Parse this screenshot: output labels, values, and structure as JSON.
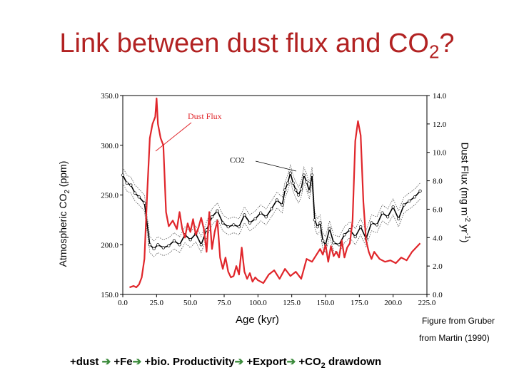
{
  "title": {
    "main": "Link between dust flux and CO",
    "sub": "2",
    "suffix": "?"
  },
  "labels": {
    "ylabel_left_a": "Atmospheric CO",
    "ylabel_left_sub": "2",
    "ylabel_left_b": " (ppm)",
    "ylabel_right_a": "Dust Flux (mg m",
    "ylabel_right_sup1": "-2",
    "ylabel_right_b": " yr",
    "ylabel_right_sup2": "-1",
    "ylabel_right_c": ")",
    "xlabel": "Age (kyr)",
    "credit1": "Figure from Gruber",
    "credit2": "from Martin (1990)"
  },
  "bottom_line": {
    "t1": "+dust ",
    "arrow": "➔",
    "t2": " +Fe",
    "t3": " +bio. Productivity",
    "t4": " +Export",
    "t5": " +CO",
    "t5_sub": "2",
    "t6": " drawdown"
  },
  "colors": {
    "title": "#b22222",
    "dust": "#e0262b",
    "co2": "#000000",
    "arrow": "#3a8a3a",
    "annot": "#e0262b"
  },
  "chart_data": {
    "type": "line",
    "xlim": [
      0,
      225
    ],
    "xticks": [
      "0.0",
      "25.0",
      "50.0",
      "75.0",
      "100.0",
      "125.0",
      "150.0",
      "175.0",
      "200.0",
      "225.0"
    ],
    "ylim_left": [
      150,
      350
    ],
    "yticks_left": [
      "150.0",
      "200.0",
      "250.0",
      "300.0",
      "350.0"
    ],
    "ylim_right": [
      0,
      14
    ],
    "yticks_right": [
      "0.0",
      "2.0",
      "4.0",
      "6.0",
      "8.0",
      "10.0",
      "12.0",
      "14.0"
    ],
    "annotations": [
      "Dust Flux",
      "CO2"
    ],
    "series": [
      {
        "name": "CO2",
        "axis": "left",
        "x": [
          0,
          3,
          6,
          9,
          12,
          16,
          20,
          23,
          26,
          30,
          34,
          38,
          42,
          46,
          50,
          54,
          58,
          62,
          66,
          70,
          74,
          78,
          82,
          86,
          90,
          94,
          98,
          102,
          106,
          110,
          114,
          118,
          120,
          122,
          124,
          126,
          128,
          130,
          132,
          134,
          136,
          138,
          140,
          142,
          144,
          146,
          148,
          150,
          153,
          156,
          160,
          164,
          168,
          172,
          176,
          180,
          184,
          188,
          192,
          196,
          200,
          204,
          208,
          212,
          216,
          220
        ],
        "y": [
          270,
          262,
          260,
          252,
          248,
          242,
          200,
          196,
          200,
          197,
          199,
          204,
          200,
          210,
          205,
          211,
          200,
          215,
          228,
          234,
          222,
          218,
          220,
          218,
          230,
          222,
          226,
          232,
          228,
          236,
          245,
          240,
          255,
          262,
          272,
          262,
          255,
          250,
          256,
          270,
          263,
          254,
          270,
          225,
          218,
          222,
          204,
          200,
          216,
          202,
          200,
          210,
          215,
          208,
          218,
          206,
          222,
          220,
          232,
          228,
          238,
          226,
          240,
          244,
          248,
          254
        ]
      },
      {
        "name": "Dust Flux",
        "axis": "right",
        "x": [
          5,
          8,
          10,
          12,
          14,
          16,
          18,
          20,
          22,
          24,
          25,
          26,
          28,
          30,
          32,
          34,
          37,
          40,
          42,
          44,
          46,
          48,
          50,
          52,
          54,
          56,
          58,
          60,
          62,
          64,
          66,
          68,
          70,
          72,
          74,
          76,
          78,
          80,
          82,
          84,
          86,
          88,
          90,
          92,
          94,
          96,
          98,
          100,
          104,
          108,
          112,
          116,
          120,
          124,
          128,
          132,
          136,
          140,
          144,
          146,
          148,
          150,
          152,
          154,
          156,
          158,
          160,
          162,
          164,
          166,
          168,
          170,
          172,
          174,
          176,
          178,
          180,
          182,
          184,
          186,
          190,
          194,
          198,
          202,
          206,
          210,
          214,
          220
        ],
        "y": [
          0.5,
          0.6,
          0.5,
          0.7,
          1.2,
          2.5,
          7.0,
          11.0,
          12.0,
          12.5,
          13.8,
          12.0,
          11.0,
          10.5,
          5.8,
          4.8,
          5.2,
          4.6,
          5.8,
          4.6,
          4.0,
          5.0,
          4.4,
          5.3,
          4.2,
          4.7,
          5.4,
          4.6,
          3.0,
          5.8,
          3.2,
          4.4,
          5.2,
          2.6,
          1.8,
          2.6,
          1.6,
          1.2,
          1.3,
          2.0,
          1.4,
          3.3,
          1.6,
          1.1,
          1.5,
          0.9,
          1.2,
          1.0,
          0.8,
          1.4,
          1.7,
          1.1,
          1.8,
          1.3,
          1.6,
          1.1,
          2.5,
          2.3,
          2.9,
          3.2,
          2.8,
          3.5,
          2.3,
          3.4,
          2.7,
          3.0,
          2.6,
          3.8,
          2.6,
          3.3,
          3.6,
          5.2,
          10.8,
          12.2,
          11.2,
          6.5,
          3.8,
          3.0,
          2.5,
          3.0,
          2.5,
          2.3,
          2.4,
          2.2,
          2.6,
          2.4,
          3.0,
          3.6
        ]
      }
    ]
  }
}
